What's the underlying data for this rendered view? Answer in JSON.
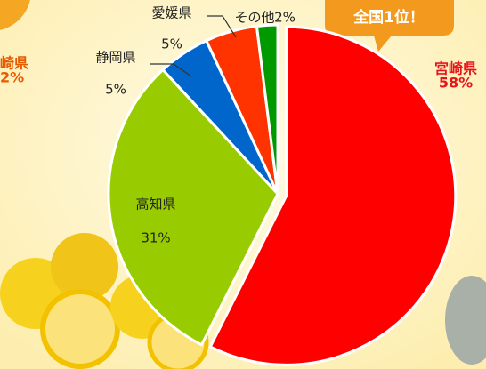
{
  "chart_data": {
    "type": "pie",
    "categories": [
      "宮崎県",
      "高知県",
      "静岡県",
      "愛媛県",
      "その他"
    ],
    "values": [
      58,
      31,
      5,
      5,
      2
    ],
    "value_labels": [
      "58%",
      "31%",
      "5%",
      "5%",
      "2%"
    ],
    "colors": [
      "#ff0000",
      "#99cc00",
      "#0066cc",
      "#ff3300",
      "#009900"
    ],
    "explode": "宮崎県"
  },
  "decor": {
    "left_label": "崎県",
    "left_value": "2%",
    "badge": "全国1位！"
  }
}
